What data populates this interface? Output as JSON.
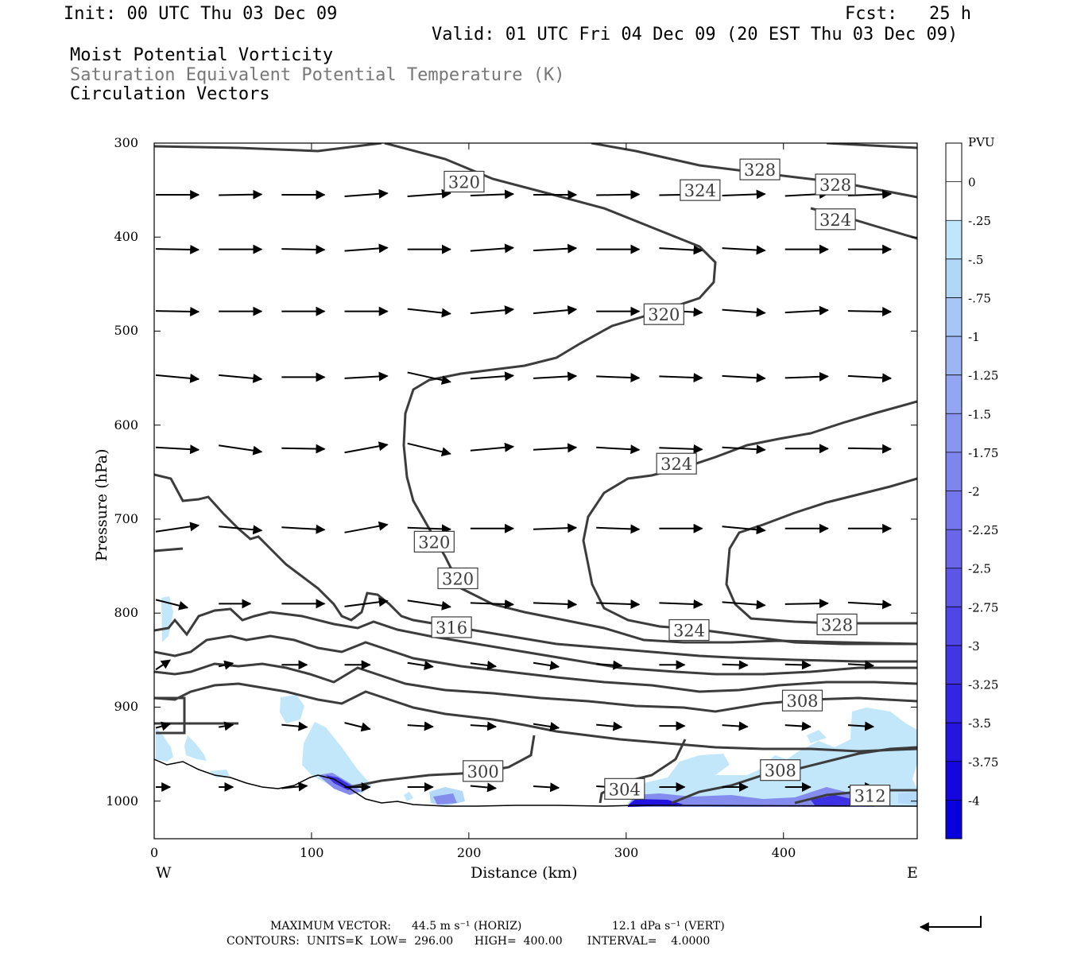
{
  "header": {
    "init": "Init: 00 UTC Thu 03 Dec 09",
    "fcst": "Fcst:   25 h",
    "valid": "Valid: 01 UTC Fri 04 Dec 09 (20 EST Thu 03 Dec 09)",
    "field1": "Moist Potential Vorticity",
    "field2": "Saturation Equivalent Potential Temperature (K)",
    "field3": "Circulation Vectors"
  },
  "colors": {
    "field2": "#777777",
    "contour": "#3c3c3c",
    "terrain": "#000000"
  },
  "chart_data": {
    "type": "cross-section",
    "xlabel": "Distance (km)",
    "ylabel": "Pressure (hPa)",
    "xlim": [
      0,
      485
    ],
    "ylim": [
      1040,
      300
    ],
    "x_ticks": [
      0,
      100,
      200,
      300,
      400
    ],
    "y_ticks": [
      300,
      400,
      500,
      600,
      700,
      800,
      900,
      1000
    ],
    "x_end_labels": {
      "left": "W",
      "right": "E"
    },
    "colorbar": {
      "unit": "PVU",
      "levels": [
        "0",
        "-.25",
        "-.5",
        "-.75",
        "-1",
        "-1.25",
        "-1.5",
        "-1.75",
        "-2",
        "-2.25",
        "-2.5",
        "-2.75",
        "-3",
        "-3.25",
        "-3.5",
        "-3.75",
        "-4"
      ],
      "colors": [
        "#ffffff",
        "#ffffff",
        "#bfe6fa",
        "#b0d6f8",
        "#a6c6f6",
        "#9cb6f4",
        "#92a6f2",
        "#8896f0",
        "#7e86ee",
        "#7476ec",
        "#6a66ea",
        "#5c56e8",
        "#4e46e6",
        "#4036e4",
        "#3226e2",
        "#2416e0",
        "#1606de",
        "#0800dc"
      ]
    },
    "contour_labels": [
      {
        "text": "320",
        "x": 197,
        "p": 341
      },
      {
        "text": "324",
        "x": 347,
        "p": 350
      },
      {
        "text": "328",
        "x": 385,
        "p": 328
      },
      {
        "text": "328",
        "x": 433,
        "p": 344
      },
      {
        "text": "324",
        "x": 433,
        "p": 381
      },
      {
        "text": "320",
        "x": 324,
        "p": 482
      },
      {
        "text": "324",
        "x": 332,
        "p": 641
      },
      {
        "text": "320",
        "x": 178,
        "p": 724
      },
      {
        "text": "320",
        "x": 193,
        "p": 763
      },
      {
        "text": "316",
        "x": 189,
        "p": 815
      },
      {
        "text": "324",
        "x": 340,
        "p": 818
      },
      {
        "text": "328",
        "x": 434,
        "p": 812
      },
      {
        "text": "308",
        "x": 412,
        "p": 893
      },
      {
        "text": "300",
        "x": 209,
        "p": 968
      },
      {
        "text": "304",
        "x": 299,
        "p": 987
      },
      {
        "text": "308",
        "x": 398,
        "p": 967
      },
      {
        "text": "312",
        "x": 455,
        "p": 994
      }
    ],
    "footer": {
      "max_vector_label": "MAXIMUM VECTOR:",
      "horiz": "44.5 m s⁻¹ (HORIZ)",
      "vert": "12.1 dPa s⁻¹ (VERT)",
      "contours_line": "CONTOURS:  UNITS=K  LOW=  296.00      HIGH=  400.00       INTERVAL=    4.0000"
    }
  }
}
